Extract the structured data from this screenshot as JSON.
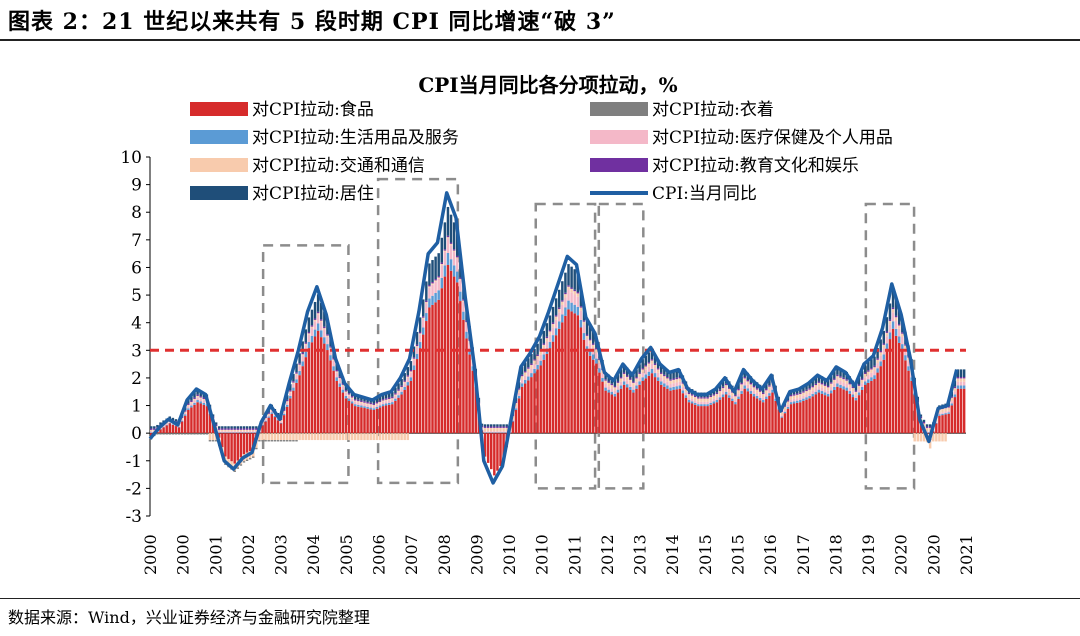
{
  "figure_title": "图表 2：21 世纪以来共有 5 段时期 CPI 同比增速“破 3”",
  "source": "数据来源：Wind，兴业证券经济与金融研究院整理",
  "chart_data": {
    "type": "bar",
    "title": "CPI当月同比各分项拉动，%",
    "stacked": true,
    "ylim": [
      -3,
      10
    ],
    "yticks": [
      "10",
      "9",
      "8",
      "7",
      "6",
      "5",
      "4",
      "3",
      "2",
      "1",
      "0",
      "-1",
      "-2",
      "-3"
    ],
    "xlim": [
      2000.0,
      2022.0
    ],
    "xticks": [
      "2000",
      "2000",
      "2001",
      "2002",
      "2003",
      "2004",
      "2005",
      "2006",
      "2007",
      "2008",
      "2009",
      "2010",
      "2010",
      "2011",
      "2012",
      "2013",
      "2014",
      "2015",
      "2015",
      "2016",
      "2017",
      "2018",
      "2019",
      "2020",
      "2020",
      "2021"
    ],
    "legend_position": "top-left",
    "legend": [
      {
        "label": "对CPI拉动:食品",
        "color": "#d62b2b",
        "kind": "bar"
      },
      {
        "label": "对CPI拉动:衣着",
        "color": "#7f7f7f",
        "kind": "bar"
      },
      {
        "label": "对CPI拉动:生活用品及服务",
        "color": "#5b9bd5",
        "kind": "bar"
      },
      {
        "label": "对CPI拉动:医疗保健及个人用品",
        "color": "#f4b8c8",
        "kind": "bar"
      },
      {
        "label": "对CPI拉动:交通和通信",
        "color": "#f8cbad",
        "kind": "bar"
      },
      {
        "label": "对CPI拉动:教育文化和娱乐",
        "color": "#7030a0",
        "kind": "bar"
      },
      {
        "label": "对CPI拉动:居住",
        "color": "#1f4e79",
        "kind": "bar"
      },
      {
        "label": "CPI:当月同比",
        "color": "#1f5fa3",
        "kind": "line"
      }
    ],
    "reference_line": {
      "y": 3,
      "color": "#e03030",
      "style": "dashed"
    },
    "highlight_periods": [
      [
        2003.05,
        2005.35
      ],
      [
        2006.15,
        2008.3
      ],
      [
        2010.4,
        2012.0
      ],
      [
        2012.1,
        2013.3
      ],
      [
        2019.3,
        2020.6
      ]
    ],
    "cpi_series": [
      [
        2000.0,
        -0.2
      ],
      [
        2000.25,
        0.2
      ],
      [
        2000.5,
        0.5
      ],
      [
        2000.75,
        0.3
      ],
      [
        2001.0,
        1.2
      ],
      [
        2001.25,
        1.6
      ],
      [
        2001.5,
        1.4
      ],
      [
        2001.75,
        0.2
      ],
      [
        2002.0,
        -1.0
      ],
      [
        2002.25,
        -1.3
      ],
      [
        2002.5,
        -0.9
      ],
      [
        2002.75,
        -0.7
      ],
      [
        2003.0,
        0.4
      ],
      [
        2003.25,
        1.0
      ],
      [
        2003.5,
        0.5
      ],
      [
        2003.75,
        1.8
      ],
      [
        2004.0,
        3.0
      ],
      [
        2004.25,
        4.4
      ],
      [
        2004.5,
        5.3
      ],
      [
        2004.75,
        4.3
      ],
      [
        2005.0,
        2.7
      ],
      [
        2005.25,
        1.8
      ],
      [
        2005.5,
        1.4
      ],
      [
        2005.75,
        1.3
      ],
      [
        2006.0,
        1.2
      ],
      [
        2006.25,
        1.4
      ],
      [
        2006.5,
        1.5
      ],
      [
        2006.75,
        2.0
      ],
      [
        2007.0,
        2.7
      ],
      [
        2007.25,
        4.4
      ],
      [
        2007.5,
        6.5
      ],
      [
        2007.75,
        6.9
      ],
      [
        2008.0,
        8.7
      ],
      [
        2008.25,
        7.8
      ],
      [
        2008.5,
        4.9
      ],
      [
        2008.75,
        2.4
      ],
      [
        2009.0,
        -1.0
      ],
      [
        2009.25,
        -1.8
      ],
      [
        2009.5,
        -1.2
      ],
      [
        2009.75,
        0.6
      ],
      [
        2010.0,
        2.4
      ],
      [
        2010.25,
        2.9
      ],
      [
        2010.5,
        3.5
      ],
      [
        2010.75,
        4.4
      ],
      [
        2011.0,
        5.4
      ],
      [
        2011.25,
        6.4
      ],
      [
        2011.5,
        6.1
      ],
      [
        2011.75,
        4.2
      ],
      [
        2012.0,
        3.6
      ],
      [
        2012.25,
        2.2
      ],
      [
        2012.5,
        1.9
      ],
      [
        2012.75,
        2.5
      ],
      [
        2013.0,
        2.1
      ],
      [
        2013.25,
        2.7
      ],
      [
        2013.5,
        3.1
      ],
      [
        2013.75,
        2.5
      ],
      [
        2014.0,
        2.2
      ],
      [
        2014.25,
        2.3
      ],
      [
        2014.5,
        1.6
      ],
      [
        2014.75,
        1.4
      ],
      [
        2015.0,
        1.4
      ],
      [
        2015.25,
        1.6
      ],
      [
        2015.5,
        2.0
      ],
      [
        2015.75,
        1.5
      ],
      [
        2016.0,
        2.3
      ],
      [
        2016.25,
        1.9
      ],
      [
        2016.5,
        1.6
      ],
      [
        2016.75,
        2.1
      ],
      [
        2017.0,
        0.8
      ],
      [
        2017.25,
        1.5
      ],
      [
        2017.5,
        1.6
      ],
      [
        2017.75,
        1.8
      ],
      [
        2018.0,
        2.1
      ],
      [
        2018.25,
        1.9
      ],
      [
        2018.5,
        2.4
      ],
      [
        2018.75,
        2.2
      ],
      [
        2019.0,
        1.7
      ],
      [
        2019.25,
        2.5
      ],
      [
        2019.5,
        2.8
      ],
      [
        2019.75,
        3.8
      ],
      [
        2020.0,
        5.4
      ],
      [
        2020.25,
        4.3
      ],
      [
        2020.5,
        2.7
      ],
      [
        2020.75,
        0.5
      ],
      [
        2021.0,
        -0.3
      ],
      [
        2021.25,
        0.9
      ],
      [
        2021.5,
        1.0
      ],
      [
        2021.75,
        2.3
      ]
    ]
  }
}
